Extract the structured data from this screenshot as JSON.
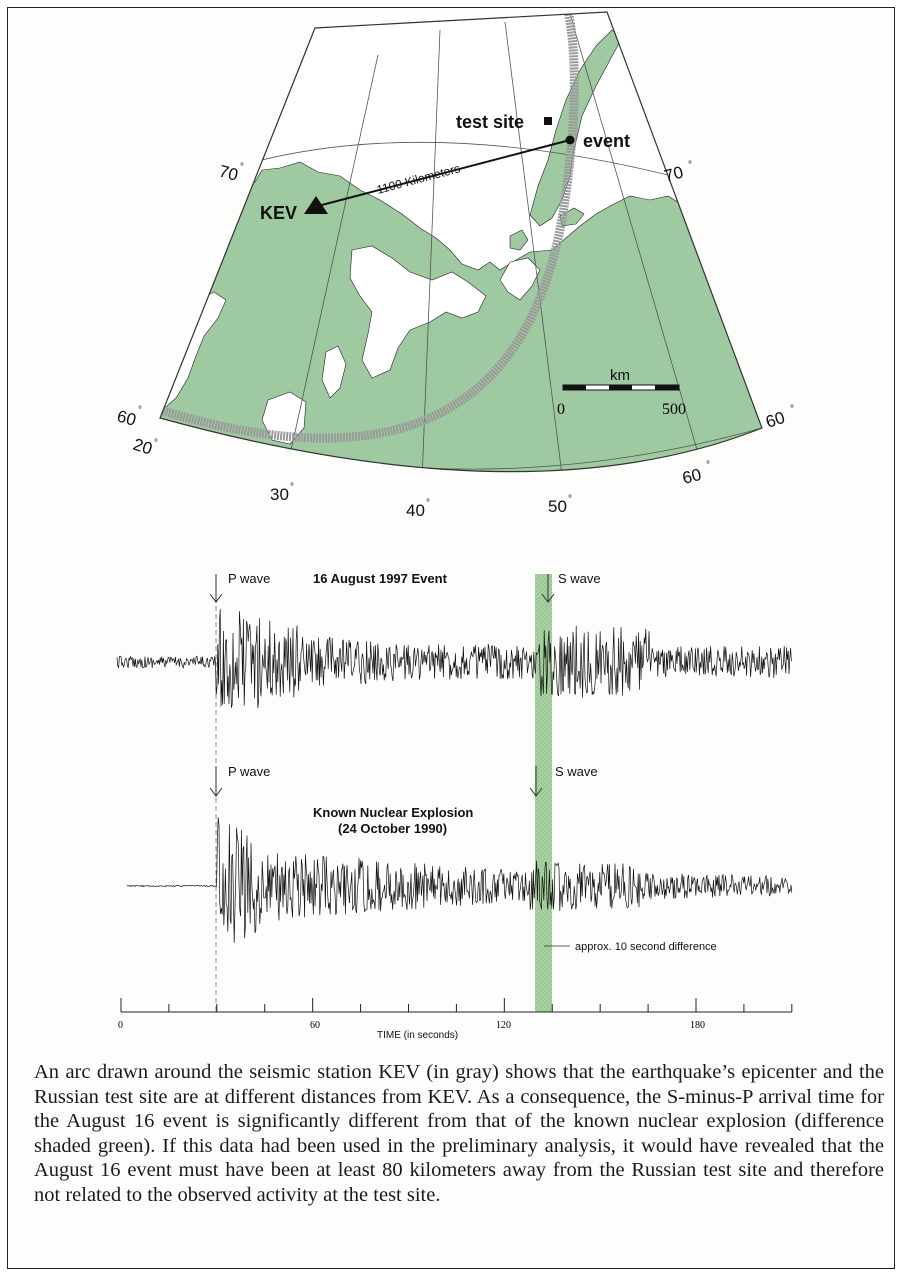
{
  "map": {
    "labels": {
      "test_site": "test site",
      "event": "event",
      "station": "KEV",
      "distance": "1100 Kilometers"
    },
    "lat_labels": {
      "lat70_left": "70",
      "lat70_right": "70",
      "lat60_left": "60",
      "lat60_right": "60",
      "lat60_lower": "60"
    },
    "lon_labels": {
      "lon20": "20",
      "lon30": "30",
      "lon40": "40",
      "lon50": "50"
    },
    "scale": {
      "unit": "km",
      "min": "0",
      "max": "500"
    },
    "colors": {
      "land": "#9fc9a0",
      "arc": "#9a9a9a",
      "water": "#ffffff"
    }
  },
  "seismograms": {
    "top": {
      "title": "16 August 1997 Event",
      "p_label": "P wave",
      "s_label": "S wave"
    },
    "bottom": {
      "title_line1": "Known Nuclear Explosion",
      "title_line2": "(24 October 1990)",
      "p_label": "P wave",
      "s_label": "S wave"
    },
    "annotation": "approx. 10 second difference",
    "axis": {
      "ticks": [
        "0",
        "60",
        "120",
        "180"
      ],
      "label": "TIME (in seconds)"
    },
    "shade_color": "#a9d1a2"
  },
  "caption": "An arc drawn around the seismic station KEV (in gray) shows that the earthquake’s epicenter and the Russian test site are at different distances from KEV. As a consequence, the S-minus-P arrival time for the August 16 event is significantly different from that of the known nuclear explosion (difference shaded green). If this data had been used in the preliminary analysis, it would have revealed that the August 16 event must have been at least 80 kilometers away from the Russian test site and therefore not related to the observed activity at the test site."
}
